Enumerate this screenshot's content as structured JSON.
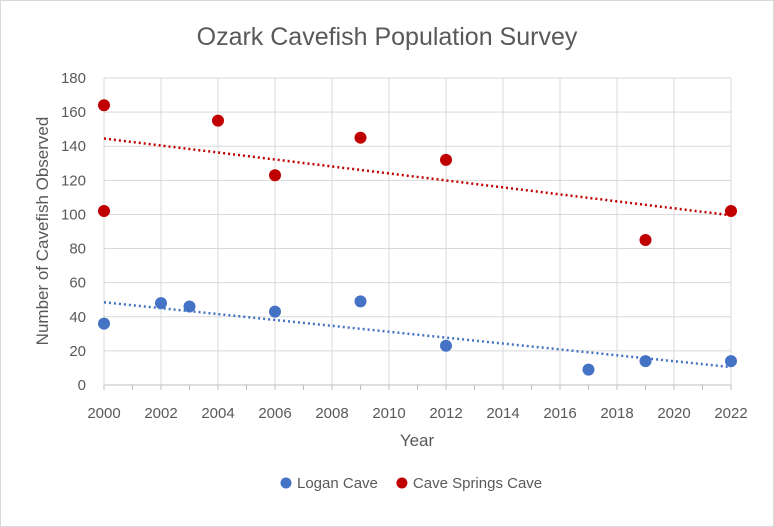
{
  "chart_data": {
    "type": "scatter",
    "title": "Ozark Cavefish Population Survey",
    "xlabel": "Year",
    "ylabel": "Number of Cavefish Observed",
    "xlim": [
      2000,
      2022
    ],
    "ylim": [
      0,
      180
    ],
    "x_ticks": [
      2000,
      2002,
      2004,
      2006,
      2008,
      2010,
      2012,
      2014,
      2016,
      2018,
      2020,
      2022
    ],
    "y_ticks": [
      0,
      20,
      40,
      60,
      80,
      100,
      120,
      140,
      160,
      180
    ],
    "grid": true,
    "legend_position": "bottom",
    "series": [
      {
        "name": "Logan Cave",
        "color": "#4472c4",
        "points": [
          {
            "x": 2000,
            "y": 36
          },
          {
            "x": 2002,
            "y": 48
          },
          {
            "x": 2003,
            "y": 46
          },
          {
            "x": 2006,
            "y": 43
          },
          {
            "x": 2009,
            "y": 49
          },
          {
            "x": 2012,
            "y": 23
          },
          {
            "x": 2017,
            "y": 9
          },
          {
            "x": 2019,
            "y": 14
          },
          {
            "x": 2022,
            "y": 14
          }
        ],
        "trendline": {
          "type": "linear",
          "style": "dotted",
          "from": {
            "x": 2000,
            "y": 48.5
          },
          "to": {
            "x": 2022,
            "y": 10.5
          }
        }
      },
      {
        "name": "Cave Springs Cave",
        "color": "#c00000",
        "points": [
          {
            "x": 2000,
            "y": 164
          },
          {
            "x": 2000,
            "y": 102
          },
          {
            "x": 2004,
            "y": 155
          },
          {
            "x": 2006,
            "y": 123
          },
          {
            "x": 2009,
            "y": 145
          },
          {
            "x": 2012,
            "y": 132
          },
          {
            "x": 2019,
            "y": 85
          },
          {
            "x": 2022,
            "y": 102
          }
        ],
        "trendline": {
          "type": "linear",
          "style": "dotted",
          "from": {
            "x": 2000,
            "y": 144.5
          },
          "to": {
            "x": 2022,
            "y": 99.5
          }
        }
      }
    ]
  }
}
